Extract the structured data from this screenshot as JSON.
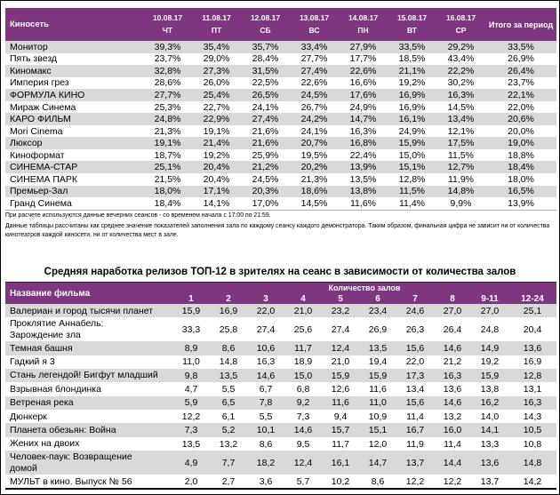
{
  "colors": {
    "header_bg": "#7E3680",
    "stripe_bg": "#D9D9D9",
    "border": "#000000"
  },
  "table1": {
    "name_header": "Киносеть",
    "total_header": "Итого за период",
    "date_columns": [
      {
        "date": "10.08.17",
        "day": "ЧТ"
      },
      {
        "date": "11.08.17",
        "day": "ПТ"
      },
      {
        "date": "12.08.17",
        "day": "СБ"
      },
      {
        "date": "13.08.17",
        "day": "ВС"
      },
      {
        "date": "14.08.17",
        "day": "ПН"
      },
      {
        "date": "15.08.17",
        "day": "ВТ"
      },
      {
        "date": "16.08.17",
        "day": "СР"
      }
    ],
    "rows": [
      {
        "name": "Монитор",
        "values": [
          "39,3%",
          "35,4%",
          "35,7%",
          "33,4%",
          "27,9%",
          "33,5%",
          "29,2%"
        ],
        "total": "33,5%"
      },
      {
        "name": "Пять звезд",
        "values": [
          "23,7%",
          "29,0%",
          "28,4%",
          "27,7%",
          "17,7%",
          "18,5%",
          "43,4%"
        ],
        "total": "26,9%"
      },
      {
        "name": "Киномакс",
        "values": [
          "32,8%",
          "27,3%",
          "31,5%",
          "27,4%",
          "22,6%",
          "21,1%",
          "22,2%"
        ],
        "total": "26,4%"
      },
      {
        "name": "Империя грез",
        "values": [
          "28,6%",
          "26,0%",
          "22,5%",
          "22,6%",
          "16,6%",
          "19,2%",
          "30,2%"
        ],
        "total": "23,7%"
      },
      {
        "name": "ФОРМУЛА КИНО",
        "values": [
          "27,7%",
          "25,4%",
          "26,5%",
          "24,5%",
          "17,6%",
          "16,9%",
          "16,3%"
        ],
        "total": "22,1%"
      },
      {
        "name": "Мираж Синема",
        "values": [
          "25,3%",
          "22,7%",
          "24,1%",
          "26,7%",
          "24,9%",
          "16,9%",
          "14,5%"
        ],
        "total": "22,0%"
      },
      {
        "name": "КАРО ФИЛЬМ",
        "values": [
          "24,8%",
          "22,9%",
          "27,4%",
          "24,2%",
          "14,7%",
          "16,1%",
          "13,4%"
        ],
        "total": "20,6%"
      },
      {
        "name": "Mori Cinema",
        "values": [
          "21,3%",
          "19,1%",
          "21,6%",
          "24,1%",
          "16,3%",
          "24,9%",
          "12,1%"
        ],
        "total": "20,0%"
      },
      {
        "name": "Люксор",
        "values": [
          "19,1%",
          "21,4%",
          "21,6%",
          "20,7%",
          "16,8%",
          "15,9%",
          "17,5%"
        ],
        "total": "19,0%"
      },
      {
        "name": "Киноформат",
        "values": [
          "18,7%",
          "19,2%",
          "25,9%",
          "19,5%",
          "22,4%",
          "15,0%",
          "11,5%"
        ],
        "total": "18,8%"
      },
      {
        "name": "СИНЕМА-СТАР",
        "values": [
          "25,1%",
          "20,4%",
          "21,2%",
          "20,2%",
          "13,9%",
          "15,1%",
          "12,7%"
        ],
        "total": "18,4%"
      },
      {
        "name": "СИНЕМА ПАРК",
        "values": [
          "21,5%",
          "20,4%",
          "24,5%",
          "21,3%",
          "13,5%",
          "12,8%",
          "11,9%"
        ],
        "total": "18,0%"
      },
      {
        "name": "Премьер-Зал",
        "values": [
          "18,0%",
          "17,1%",
          "20,3%",
          "18,6%",
          "13,8%",
          "11,5%",
          "14,8%"
        ],
        "total": "16,5%"
      },
      {
        "name": "Гранд Синема",
        "values": [
          "18,4%",
          "14,1%",
          "17,0%",
          "14,5%",
          "11,6%",
          "11,4%",
          "9,9%"
        ],
        "total": "13,9%"
      }
    ]
  },
  "footnotes": {
    "line1": "При расчете используются данные вечерних сеансов - со временем начала с 17:00 по 21:59.",
    "line2": "Данные таблицы рассчитаны как среднее значение показателей заполнения зала по каждому сеансу каждого демонстратора. Таким образом, финальная цифра не зависит ни от количества кинотеатров каждой киносети, ни от количества мест в зале."
  },
  "table2": {
    "title": "Средняя наработка релизов ТОП-12 в зрителях на сеанс в зависимости от количества залов",
    "name_header": "Название фильма",
    "group_header": "Количество залов",
    "columns": [
      "1",
      "2",
      "3",
      "4",
      "5",
      "6",
      "7",
      "8",
      "9-11",
      "12-24"
    ],
    "rows": [
      {
        "name": "Валериан и город тысячи планет",
        "values": [
          "15,9",
          "16,9",
          "22,0",
          "21,0",
          "23,2",
          "23,4",
          "24,6",
          "27,0",
          "27,0",
          "25,1"
        ]
      },
      {
        "name": "Проклятие Аннабель:\nЗарождение зла",
        "values": [
          "33,3",
          "25,8",
          "27,4",
          "25,6",
          "27,4",
          "26,9",
          "26,3",
          "26,4",
          "24,8",
          "20,4"
        ]
      },
      {
        "name": "Темная башня",
        "values": [
          "8,9",
          "8,6",
          "10,6",
          "11,7",
          "12,4",
          "13,5",
          "15,6",
          "14,6",
          "14,9",
          "13,6"
        ]
      },
      {
        "name": "Гадкий я 3",
        "values": [
          "11,0",
          "14,8",
          "16,3",
          "18,9",
          "21,0",
          "19,4",
          "22,0",
          "21,2",
          "19,2",
          "16,9"
        ]
      },
      {
        "name": "Стань легендой! Бигфут младший",
        "values": [
          "9,8",
          "13,5",
          "14,6",
          "15,0",
          "15,9",
          "15,9",
          "17,3",
          "16,3",
          "15,9",
          "12,8"
        ]
      },
      {
        "name": "Взрывная блондинка",
        "values": [
          "4,7",
          "5,5",
          "6,7",
          "6,8",
          "12,6",
          "11,6",
          "13,4",
          "13,6",
          "13,8",
          "13,1"
        ]
      },
      {
        "name": "Ветреная река",
        "values": [
          "5,9",
          "6,5",
          "7,8",
          "9,2",
          "11,6",
          "11,0",
          "15,6",
          "14,6",
          "16,2",
          "16,3"
        ]
      },
      {
        "name": "Дюнкерк",
        "values": [
          "12,2",
          "6,1",
          "5,5",
          "7,3",
          "9,4",
          "10,9",
          "11,4",
          "13,2",
          "14,0",
          "14,3"
        ]
      },
      {
        "name": "Планета обезьян: Война",
        "values": [
          "7,3",
          "5,2",
          "10,1",
          "14,6",
          "15,7",
          "15,1",
          "16,7",
          "16,0",
          "14,1",
          "10,5"
        ]
      },
      {
        "name": "Жених на двоих",
        "values": [
          "13,5",
          "13,2",
          "8,6",
          "9,5",
          "11,7",
          "12,0",
          "11,9",
          "11,4",
          "13,3",
          "10,8"
        ]
      },
      {
        "name": "Человек-паук: Возвращение\nдомой",
        "values": [
          "4,9",
          "7,7",
          "18,2",
          "12,4",
          "16,1",
          "14,7",
          "13,7",
          "14,4",
          "13,6",
          "14,8"
        ]
      },
      {
        "name": "МУЛЬТ в кино. Выпуск № 56",
        "values": [
          "2,0",
          "2,7",
          "3,6",
          "5,7",
          "10,2",
          "8,6",
          "12,2",
          "12,2",
          "13,7",
          "14,2"
        ]
      }
    ]
  }
}
